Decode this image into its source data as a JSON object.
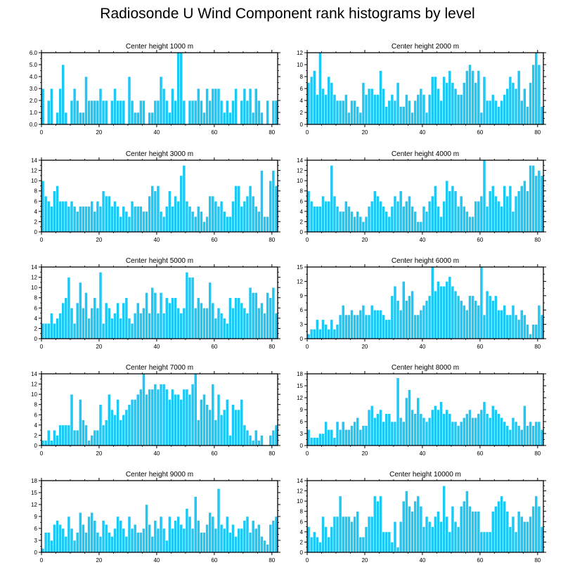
{
  "title": "Radiosonde U Wind Component rank histograms by level",
  "colors": {
    "bar": "#1ec8f5",
    "bar_edge": "#ffffff",
    "axis": "#000000"
  },
  "chart_data": [
    {
      "type": "bar",
      "title": "Center height 1000 m",
      "xlim": [
        0,
        82
      ],
      "ylim": [
        0,
        6
      ],
      "yticks": [
        0,
        1,
        2,
        3,
        4,
        5,
        6
      ],
      "ytick_labels": [
        "0.0",
        "1.0",
        "2.0",
        "3.0",
        "4.0",
        "5.0",
        "6.0"
      ],
      "xticks": [
        0,
        20,
        40,
        60,
        80
      ],
      "xtick_labels": [
        "0",
        "20",
        "40",
        "60",
        "80"
      ],
      "values": [
        3,
        0,
        2,
        3,
        0,
        1,
        3,
        5,
        1,
        0,
        2,
        3,
        2,
        1,
        1,
        4,
        2,
        2,
        2,
        2,
        3,
        2,
        2,
        0,
        2,
        3,
        2,
        2,
        2,
        0,
        4,
        2,
        1,
        1,
        2,
        2,
        0,
        1,
        1,
        2,
        2,
        4,
        3,
        2,
        1,
        3,
        2,
        6,
        6,
        2,
        0,
        2,
        2,
        2,
        3,
        2,
        1,
        3,
        2,
        3,
        3,
        3,
        2,
        1,
        2,
        1,
        2,
        3,
        0,
        2,
        3,
        2,
        3,
        1,
        3,
        2,
        1,
        0,
        2,
        0,
        2,
        2
      ]
    },
    {
      "type": "bar",
      "title": "Center height 2000 m",
      "xlim": [
        0,
        82
      ],
      "ylim": [
        0,
        12
      ],
      "yticks": [
        0,
        2,
        4,
        6,
        8,
        10,
        12
      ],
      "ytick_labels": [
        "0",
        "2",
        "4",
        "6",
        "8",
        "10",
        "12"
      ],
      "xticks": [
        0,
        20,
        40,
        60,
        80
      ],
      "xtick_labels": [
        "0",
        "20",
        "40",
        "60",
        "80"
      ],
      "values": [
        7,
        8,
        9,
        5,
        12,
        6,
        5,
        8,
        7,
        5,
        4,
        4,
        4,
        5,
        2,
        4,
        4,
        3,
        2,
        7,
        5,
        6,
        6,
        5,
        5,
        9,
        6,
        3,
        4,
        5,
        4,
        7,
        3,
        3,
        5,
        4,
        2,
        4,
        5,
        6,
        5,
        2,
        5,
        8,
        8,
        6,
        4,
        8,
        7,
        9,
        7,
        6,
        5,
        5,
        7,
        9,
        10,
        9,
        7,
        9,
        2,
        8,
        4,
        4,
        5,
        4,
        3,
        4,
        5,
        6,
        8,
        7,
        6,
        9,
        4,
        6,
        3,
        7,
        10,
        12,
        10,
        3
      ]
    },
    {
      "type": "bar",
      "title": "Center height 3000 m",
      "xlim": [
        0,
        82
      ],
      "ylim": [
        0,
        14
      ],
      "yticks": [
        0,
        2,
        4,
        6,
        8,
        10,
        12,
        14
      ],
      "ytick_labels": [
        "0",
        "2",
        "4",
        "6",
        "8",
        "10",
        "12",
        "14"
      ],
      "xticks": [
        0,
        20,
        40,
        60,
        80
      ],
      "xtick_labels": [
        "0",
        "20",
        "40",
        "60",
        "80"
      ],
      "values": [
        10,
        7,
        6,
        5,
        8,
        9,
        6,
        6,
        6,
        5,
        6,
        5,
        4,
        5,
        5,
        5,
        5,
        6,
        4,
        6,
        5,
        8,
        7,
        7,
        5,
        6,
        5,
        3,
        5,
        4,
        3,
        6,
        5,
        5,
        5,
        4,
        4,
        7,
        9,
        8,
        9,
        4,
        3,
        5,
        8,
        5,
        7,
        6,
        11,
        13,
        6,
        5,
        4,
        3,
        5,
        4,
        2,
        3,
        7,
        7,
        6,
        5,
        6,
        4,
        3,
        3,
        6,
        9,
        9,
        5,
        6,
        7,
        9,
        7,
        5,
        4,
        12,
        3,
        3,
        10,
        12,
        9
      ]
    },
    {
      "type": "bar",
      "title": "Center height 4000 m",
      "xlim": [
        0,
        82
      ],
      "ylim": [
        0,
        14
      ],
      "yticks": [
        0,
        2,
        4,
        6,
        8,
        10,
        12,
        14
      ],
      "ytick_labels": [
        "0",
        "2",
        "4",
        "6",
        "8",
        "10",
        "12",
        "14"
      ],
      "xticks": [
        0,
        20,
        40,
        60,
        80
      ],
      "xtick_labels": [
        "0",
        "20",
        "40",
        "60",
        "80"
      ],
      "values": [
        8,
        6,
        5,
        5,
        5,
        7,
        6,
        6,
        13,
        7,
        5,
        4,
        4,
        6,
        5,
        4,
        3,
        4,
        3,
        2,
        3,
        5,
        6,
        8,
        7,
        6,
        5,
        4,
        3,
        5,
        7,
        6,
        8,
        5,
        6,
        7,
        5,
        4,
        2,
        2,
        5,
        4,
        6,
        7,
        9,
        5,
        3,
        6,
        10,
        8,
        9,
        8,
        5,
        7,
        5,
        4,
        3,
        3,
        6,
        6,
        7,
        14,
        5,
        8,
        9,
        7,
        6,
        5,
        9,
        7,
        9,
        4,
        7,
        8,
        9,
        10,
        8,
        13,
        13,
        11,
        12,
        11
      ]
    },
    {
      "type": "bar",
      "title": "Center height 5000 m",
      "xlim": [
        0,
        82
      ],
      "ylim": [
        0,
        14
      ],
      "yticks": [
        0,
        2,
        4,
        6,
        8,
        10,
        12,
        14
      ],
      "ytick_labels": [
        "0",
        "2",
        "4",
        "6",
        "8",
        "10",
        "12",
        "14"
      ],
      "xticks": [
        0,
        20,
        40,
        60,
        80
      ],
      "xtick_labels": [
        "0",
        "20",
        "40",
        "60",
        "80"
      ],
      "values": [
        3,
        3,
        3,
        5,
        3,
        4,
        5,
        7,
        8,
        12,
        6,
        3,
        7,
        11,
        6,
        9,
        4,
        6,
        8,
        6,
        13,
        3,
        7,
        6,
        4,
        5,
        7,
        4,
        7,
        8,
        4,
        3,
        5,
        7,
        5,
        6,
        9,
        5,
        10,
        9,
        5,
        9,
        5,
        8,
        7,
        8,
        8,
        6,
        5,
        6,
        13,
        12,
        12,
        6,
        8,
        7,
        6,
        6,
        11,
        7,
        4,
        6,
        5,
        4,
        3,
        8,
        6,
        8,
        8,
        7,
        6,
        5,
        10,
        9,
        9,
        6,
        7,
        5,
        9,
        8,
        10,
        5
      ]
    },
    {
      "type": "bar",
      "title": "Center height 6000 m",
      "xlim": [
        0,
        82
      ],
      "ylim": [
        0,
        15
      ],
      "yticks": [
        0,
        3,
        6,
        9,
        12,
        15
      ],
      "ytick_labels": [
        "0",
        "3",
        "6",
        "9",
        "12",
        "15"
      ],
      "xticks": [
        0,
        20,
        40,
        60,
        80
      ],
      "xtick_labels": [
        "0",
        "20",
        "40",
        "60",
        "80"
      ],
      "values": [
        1,
        2,
        2,
        4,
        2,
        4,
        3,
        2,
        4,
        2,
        3,
        5,
        7,
        5,
        5,
        6,
        5,
        5,
        6,
        7,
        5,
        5,
        7,
        6,
        6,
        6,
        5,
        4,
        4,
        9,
        11,
        8,
        6,
        12,
        8,
        9,
        10,
        5,
        5,
        6,
        7,
        8,
        9,
        15,
        10,
        12,
        11,
        11,
        12,
        13,
        11,
        10,
        9,
        8,
        7,
        6,
        9,
        9,
        8,
        7,
        15,
        5,
        10,
        9,
        8,
        9,
        6,
        6,
        7,
        5,
        5,
        7,
        5,
        4,
        6,
        5,
        3,
        1,
        3,
        3,
        7,
        5
      ]
    },
    {
      "type": "bar",
      "title": "Center height 7000 m",
      "xlim": [
        0,
        82
      ],
      "ylim": [
        0,
        14
      ],
      "yticks": [
        0,
        2,
        4,
        6,
        8,
        10,
        12,
        14
      ],
      "ytick_labels": [
        "0",
        "2",
        "4",
        "6",
        "8",
        "10",
        "12",
        "14"
      ],
      "xticks": [
        0,
        20,
        40,
        60,
        80
      ],
      "xtick_labels": [
        "0",
        "20",
        "40",
        "60",
        "80"
      ],
      "values": [
        1,
        1,
        3,
        1,
        3,
        2,
        4,
        4,
        4,
        4,
        10,
        3,
        3,
        9,
        5,
        4,
        1,
        2,
        3,
        3,
        8,
        4,
        5,
        10,
        7,
        6,
        9,
        5,
        6,
        7,
        8,
        9,
        9,
        10,
        11,
        14,
        10,
        11,
        11,
        12,
        11,
        12,
        12,
        11,
        9,
        11,
        10,
        10,
        9,
        11,
        11,
        10,
        12,
        14,
        5,
        9,
        10,
        8,
        7,
        12,
        5,
        10,
        6,
        7,
        9,
        2,
        8,
        7,
        7,
        9,
        4,
        3,
        2,
        1,
        3,
        1,
        2,
        0,
        0,
        2,
        3,
        4
      ]
    },
    {
      "type": "bar",
      "title": "Center height 8000 m",
      "xlim": [
        0,
        82
      ],
      "ylim": [
        0,
        18
      ],
      "yticks": [
        0,
        3,
        6,
        9,
        12,
        15,
        18
      ],
      "ytick_labels": [
        "0",
        "3",
        "6",
        "9",
        "12",
        "15",
        "18"
      ],
      "xticks": [
        0,
        20,
        40,
        60,
        80
      ],
      "xtick_labels": [
        "0",
        "20",
        "40",
        "60",
        "80"
      ],
      "values": [
        4,
        2,
        2,
        2,
        3,
        3,
        6,
        4,
        4,
        2,
        6,
        4,
        6,
        4,
        4,
        5,
        6,
        7,
        4,
        5,
        5,
        9,
        10,
        7,
        8,
        9,
        6,
        8,
        8,
        6,
        6,
        17,
        7,
        6,
        12,
        14,
        9,
        8,
        12,
        8,
        7,
        6,
        7,
        9,
        10,
        9,
        11,
        8,
        9,
        8,
        6,
        6,
        5,
        6,
        7,
        8,
        9,
        7,
        7,
        8,
        9,
        11,
        8,
        7,
        10,
        9,
        8,
        7,
        6,
        5,
        4,
        7,
        6,
        5,
        4,
        10,
        5,
        6,
        5,
        6,
        6,
        4
      ]
    },
    {
      "type": "bar",
      "title": "Center height 9000 m",
      "xlim": [
        0,
        82
      ],
      "ylim": [
        0,
        18
      ],
      "yticks": [
        0,
        3,
        6,
        9,
        12,
        15,
        18
      ],
      "ytick_labels": [
        "0",
        "3",
        "6",
        "9",
        "12",
        "15",
        "18"
      ],
      "xticks": [
        0,
        20,
        40,
        60,
        80
      ],
      "xtick_labels": [
        "0",
        "20",
        "40",
        "60",
        "80"
      ],
      "values": [
        1,
        5,
        5,
        3,
        7,
        8,
        7,
        6,
        4,
        9,
        6,
        3,
        5,
        10,
        7,
        5,
        9,
        10,
        8,
        5,
        4,
        8,
        7,
        5,
        4,
        6,
        9,
        8,
        6,
        4,
        9,
        6,
        7,
        5,
        5,
        6,
        12,
        7,
        4,
        8,
        6,
        9,
        6,
        3,
        9,
        6,
        8,
        9,
        7,
        6,
        11,
        9,
        6,
        14,
        8,
        5,
        5,
        7,
        10,
        9,
        6,
        16,
        7,
        6,
        9,
        5,
        7,
        4,
        6,
        6,
        8,
        9,
        5,
        8,
        6,
        7,
        4,
        3,
        2,
        7,
        8,
        9
      ]
    },
    {
      "type": "bar",
      "title": "Center height 10000 m",
      "xlim": [
        0,
        82
      ],
      "ylim": [
        0,
        14
      ],
      "yticks": [
        0,
        2,
        4,
        6,
        8,
        10,
        12,
        14
      ],
      "ytick_labels": [
        "0",
        "2",
        "4",
        "6",
        "8",
        "10",
        "12",
        "14"
      ],
      "xticks": [
        0,
        20,
        40,
        60,
        80
      ],
      "xtick_labels": [
        "0",
        "20",
        "40",
        "60",
        "80"
      ],
      "values": [
        5,
        3,
        4,
        3,
        2,
        7,
        5,
        3,
        5,
        7,
        7,
        11,
        7,
        7,
        7,
        6,
        7,
        8,
        3,
        3,
        5,
        7,
        7,
        11,
        10,
        11,
        4,
        4,
        4,
        2,
        6,
        1,
        6,
        10,
        12,
        9,
        8,
        10,
        11,
        9,
        5,
        7,
        6,
        5,
        7,
        8,
        6,
        13,
        7,
        4,
        9,
        6,
        5,
        9,
        10,
        12,
        9,
        8,
        8,
        8,
        4,
        4,
        4,
        4,
        8,
        9,
        10,
        11,
        10,
        8,
        5,
        7,
        4,
        8,
        7,
        6,
        6,
        7,
        9,
        11,
        9,
        5
      ]
    }
  ]
}
